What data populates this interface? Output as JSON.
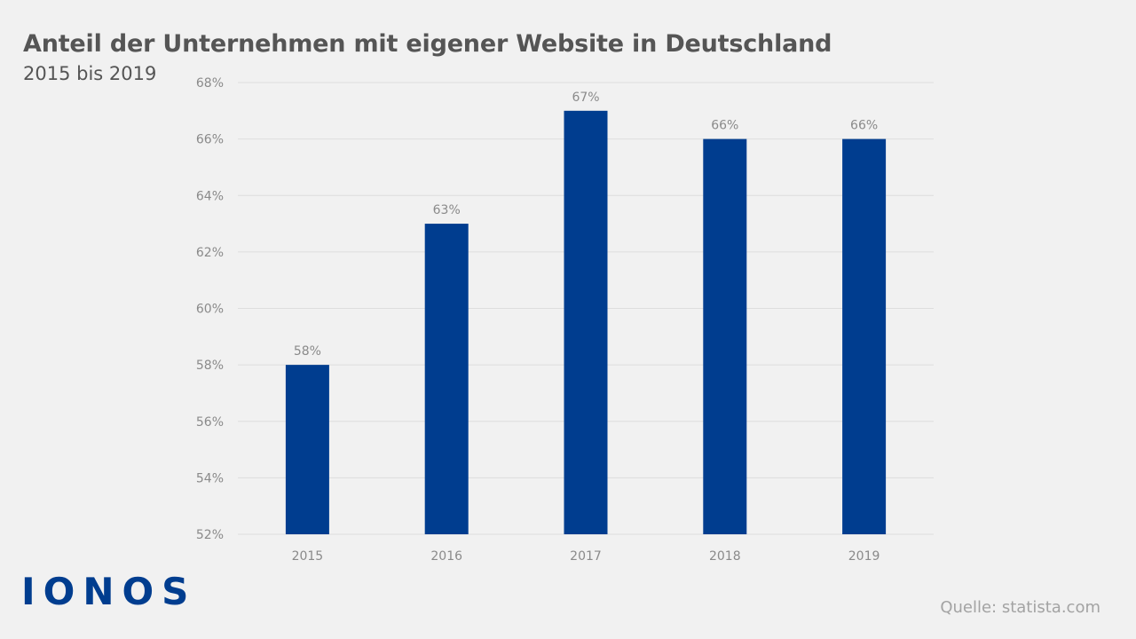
{
  "header": {
    "title": "Anteil der Unternehmen mit eigener Website in Deutschland",
    "subtitle": "2015 bis 2019"
  },
  "footer": {
    "logo_text": "IONOS",
    "source": "Quelle: statista.com"
  },
  "colors": {
    "bar": "#003d8f",
    "grid": "#dddddd",
    "background": "#f1f1f1",
    "text": "#555555",
    "muted": "#8a8a8a"
  },
  "chart_data": {
    "type": "bar",
    "title": "Anteil der Unternehmen mit eigener Website in Deutschland",
    "subtitle": "2015 bis 2019",
    "xlabel": "",
    "ylabel": "",
    "categories": [
      "2015",
      "2016",
      "2017",
      "2018",
      "2019"
    ],
    "values": [
      58,
      63,
      67,
      66,
      66
    ],
    "data_labels": [
      "58%",
      "63%",
      "67%",
      "66%",
      "66%"
    ],
    "ylim": [
      52,
      68
    ],
    "yticks": [
      52,
      54,
      56,
      58,
      60,
      62,
      64,
      66,
      68
    ],
    "ytick_labels": [
      "52%",
      "54%",
      "56%",
      "58%",
      "60%",
      "62%",
      "64%",
      "66%",
      "68%"
    ],
    "grid": true,
    "legend": "none"
  }
}
